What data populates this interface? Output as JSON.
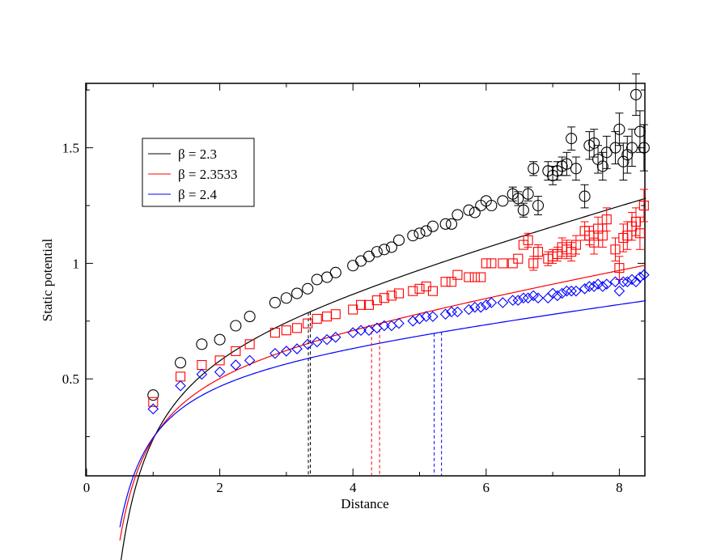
{
  "chart_data": {
    "type": "scatter",
    "title": "",
    "xlabel": "Distance",
    "ylabel": "Static potential",
    "xlim": [
      0,
      8.4
    ],
    "ylim": [
      0.0,
      1.8
    ],
    "x_ticks": [
      0,
      2,
      4,
      6,
      8
    ],
    "x_tick_labels": [
      "0",
      "2",
      "4",
      "6",
      "8"
    ],
    "y_ticks": [
      0.5,
      1.0,
      1.5
    ],
    "y_tick_labels": [
      "0.5",
      "1",
      "1.5"
    ],
    "grid": false,
    "legend_position": "top-left",
    "series": [
      {
        "name": "β = 2.3",
        "color": "#000000",
        "marker": "circle",
        "fit": {
          "sigma": 0.079,
          "alpha": 0.52,
          "c": 0.68
        },
        "fit_range_markers": [
          3.33,
          3.36
        ],
        "x": [
          1.0,
          1.41,
          1.73,
          2.0,
          2.24,
          2.45,
          2.83,
          3.0,
          3.16,
          3.32,
          3.46,
          3.61,
          3.74,
          4.0,
          4.12,
          4.24,
          4.36,
          4.47,
          4.58,
          4.69,
          4.9,
          5.0,
          5.1,
          5.2,
          5.39,
          5.48,
          5.57,
          5.74,
          5.83,
          5.92,
          6.0,
          6.08,
          6.25,
          6.4,
          6.48,
          6.56,
          6.63,
          6.71,
          6.78,
          6.93,
          7.0,
          7.07,
          7.14,
          7.21,
          7.28,
          7.35,
          7.48,
          7.55,
          7.62,
          7.68,
          7.75,
          7.81,
          7.94,
          8.0,
          8.06,
          8.12,
          8.19,
          8.25,
          8.31,
          8.37
        ],
        "y": [
          0.43,
          0.57,
          0.65,
          0.67,
          0.73,
          0.77,
          0.83,
          0.85,
          0.87,
          0.89,
          0.93,
          0.94,
          0.96,
          0.99,
          1.01,
          1.03,
          1.05,
          1.06,
          1.07,
          1.1,
          1.12,
          1.13,
          1.14,
          1.16,
          1.17,
          1.17,
          1.21,
          1.23,
          1.22,
          1.25,
          1.27,
          1.25,
          1.27,
          1.3,
          1.28,
          1.23,
          1.3,
          1.41,
          1.25,
          1.4,
          1.38,
          1.4,
          1.42,
          1.43,
          1.54,
          1.41,
          1.29,
          1.51,
          1.52,
          1.45,
          1.42,
          1.48,
          1.5,
          1.58,
          1.44,
          1.47,
          1.5,
          1.73,
          1.57,
          1.5
        ],
        "err": [
          0.01,
          0.01,
          0.01,
          0.01,
          0.01,
          0.01,
          0.01,
          0.01,
          0.01,
          0.01,
          0.01,
          0.01,
          0.01,
          0.01,
          0.01,
          0.01,
          0.01,
          0.01,
          0.01,
          0.01,
          0.01,
          0.01,
          0.01,
          0.01,
          0.01,
          0.01,
          0.02,
          0.02,
          0.02,
          0.02,
          0.02,
          0.02,
          0.02,
          0.03,
          0.03,
          0.03,
          0.03,
          0.03,
          0.04,
          0.04,
          0.04,
          0.04,
          0.04,
          0.05,
          0.05,
          0.05,
          0.05,
          0.06,
          0.06,
          0.06,
          0.06,
          0.07,
          0.07,
          0.07,
          0.08,
          0.08,
          0.08,
          0.09,
          0.09,
          0.1
        ]
      },
      {
        "name": "β = 2.3533",
        "color": "#ff0000",
        "marker": "square",
        "fit": {
          "sigma": 0.052,
          "alpha": 0.415,
          "c": 0.605
        },
        "fit_range_markers": [
          4.28,
          4.4
        ],
        "x": [
          1.0,
          1.41,
          1.73,
          2.0,
          2.24,
          2.45,
          2.83,
          3.0,
          3.16,
          3.32,
          3.46,
          3.61,
          3.74,
          4.0,
          4.12,
          4.24,
          4.36,
          4.47,
          4.58,
          4.69,
          4.9,
          5.0,
          5.1,
          5.2,
          5.39,
          5.48,
          5.57,
          5.74,
          5.83,
          5.92,
          6.0,
          6.08,
          6.25,
          6.4,
          6.48,
          6.56,
          6.63,
          6.71,
          6.78,
          6.93,
          7.0,
          7.07,
          7.14,
          7.21,
          7.28,
          7.35,
          7.48,
          7.55,
          7.62,
          7.68,
          7.75,
          7.81,
          7.94,
          8.0,
          8.06,
          8.12,
          8.19,
          8.25,
          8.31,
          8.37
        ],
        "y": [
          0.4,
          0.51,
          0.56,
          0.58,
          0.62,
          0.65,
          0.7,
          0.71,
          0.72,
          0.74,
          0.76,
          0.77,
          0.78,
          0.8,
          0.82,
          0.82,
          0.84,
          0.85,
          0.86,
          0.87,
          0.88,
          0.89,
          0.9,
          0.88,
          0.92,
          0.92,
          0.95,
          0.94,
          0.94,
          0.94,
          1.0,
          1.0,
          1.0,
          1.0,
          1.02,
          1.08,
          1.1,
          1.0,
          1.05,
          1.02,
          1.03,
          1.04,
          1.07,
          1.06,
          1.05,
          1.08,
          1.14,
          1.12,
          1.09,
          1.15,
          1.12,
          1.19,
          1.06,
          0.98,
          1.11,
          1.12,
          1.16,
          1.18,
          1.13,
          1.25
        ],
        "err": [
          0.01,
          0.01,
          0.01,
          0.01,
          0.01,
          0.01,
          0.01,
          0.01,
          0.01,
          0.01,
          0.01,
          0.01,
          0.01,
          0.01,
          0.01,
          0.01,
          0.01,
          0.01,
          0.01,
          0.01,
          0.01,
          0.01,
          0.01,
          0.01,
          0.01,
          0.01,
          0.01,
          0.01,
          0.01,
          0.01,
          0.02,
          0.02,
          0.02,
          0.02,
          0.02,
          0.02,
          0.03,
          0.03,
          0.03,
          0.03,
          0.03,
          0.03,
          0.04,
          0.04,
          0.04,
          0.04,
          0.04,
          0.04,
          0.05,
          0.05,
          0.05,
          0.05,
          0.05,
          0.05,
          0.06,
          0.06,
          0.06,
          0.06,
          0.07,
          0.07
        ]
      },
      {
        "name": "β = 2.4",
        "color": "#0000ff",
        "marker": "diamond",
        "fit": {
          "sigma": 0.036,
          "alpha": 0.37,
          "c": 0.58
        },
        "fit_range_markers": [
          5.22,
          5.33
        ],
        "x": [
          1.0,
          1.41,
          1.73,
          2.0,
          2.24,
          2.45,
          2.83,
          3.0,
          3.16,
          3.32,
          3.46,
          3.61,
          3.74,
          4.0,
          4.12,
          4.24,
          4.36,
          4.47,
          4.58,
          4.69,
          4.9,
          5.0,
          5.1,
          5.2,
          5.39,
          5.48,
          5.57,
          5.74,
          5.83,
          5.92,
          6.0,
          6.08,
          6.25,
          6.4,
          6.48,
          6.56,
          6.63,
          6.71,
          6.78,
          6.93,
          7.0,
          7.07,
          7.14,
          7.21,
          7.28,
          7.35,
          7.48,
          7.55,
          7.62,
          7.68,
          7.75,
          7.81,
          7.94,
          8.0,
          8.06,
          8.12,
          8.19,
          8.25,
          8.31,
          8.37
        ],
        "y": [
          0.37,
          0.47,
          0.52,
          0.53,
          0.56,
          0.58,
          0.61,
          0.62,
          0.63,
          0.65,
          0.66,
          0.67,
          0.68,
          0.7,
          0.71,
          0.71,
          0.72,
          0.73,
          0.73,
          0.74,
          0.75,
          0.76,
          0.77,
          0.77,
          0.78,
          0.79,
          0.79,
          0.8,
          0.81,
          0.81,
          0.82,
          0.83,
          0.83,
          0.84,
          0.84,
          0.85,
          0.85,
          0.86,
          0.85,
          0.85,
          0.87,
          0.86,
          0.87,
          0.88,
          0.88,
          0.88,
          0.89,
          0.9,
          0.9,
          0.91,
          0.9,
          0.91,
          0.92,
          0.88,
          0.92,
          0.92,
          0.93,
          0.92,
          0.94,
          0.95
        ],
        "err": [
          0.005,
          0.005,
          0.005,
          0.005,
          0.005,
          0.005,
          0.005,
          0.005,
          0.005,
          0.005,
          0.005,
          0.005,
          0.005,
          0.005,
          0.005,
          0.005,
          0.005,
          0.005,
          0.005,
          0.005,
          0.005,
          0.005,
          0.005,
          0.005,
          0.005,
          0.005,
          0.005,
          0.005,
          0.005,
          0.005,
          0.005,
          0.005,
          0.005,
          0.005,
          0.005,
          0.005,
          0.005,
          0.005,
          0.01,
          0.01,
          0.01,
          0.01,
          0.01,
          0.01,
          0.01,
          0.01,
          0.01,
          0.01,
          0.01,
          0.01,
          0.01,
          0.01,
          0.01,
          0.02,
          0.01,
          0.01,
          0.01,
          0.01,
          0.01,
          0.01
        ]
      }
    ]
  }
}
